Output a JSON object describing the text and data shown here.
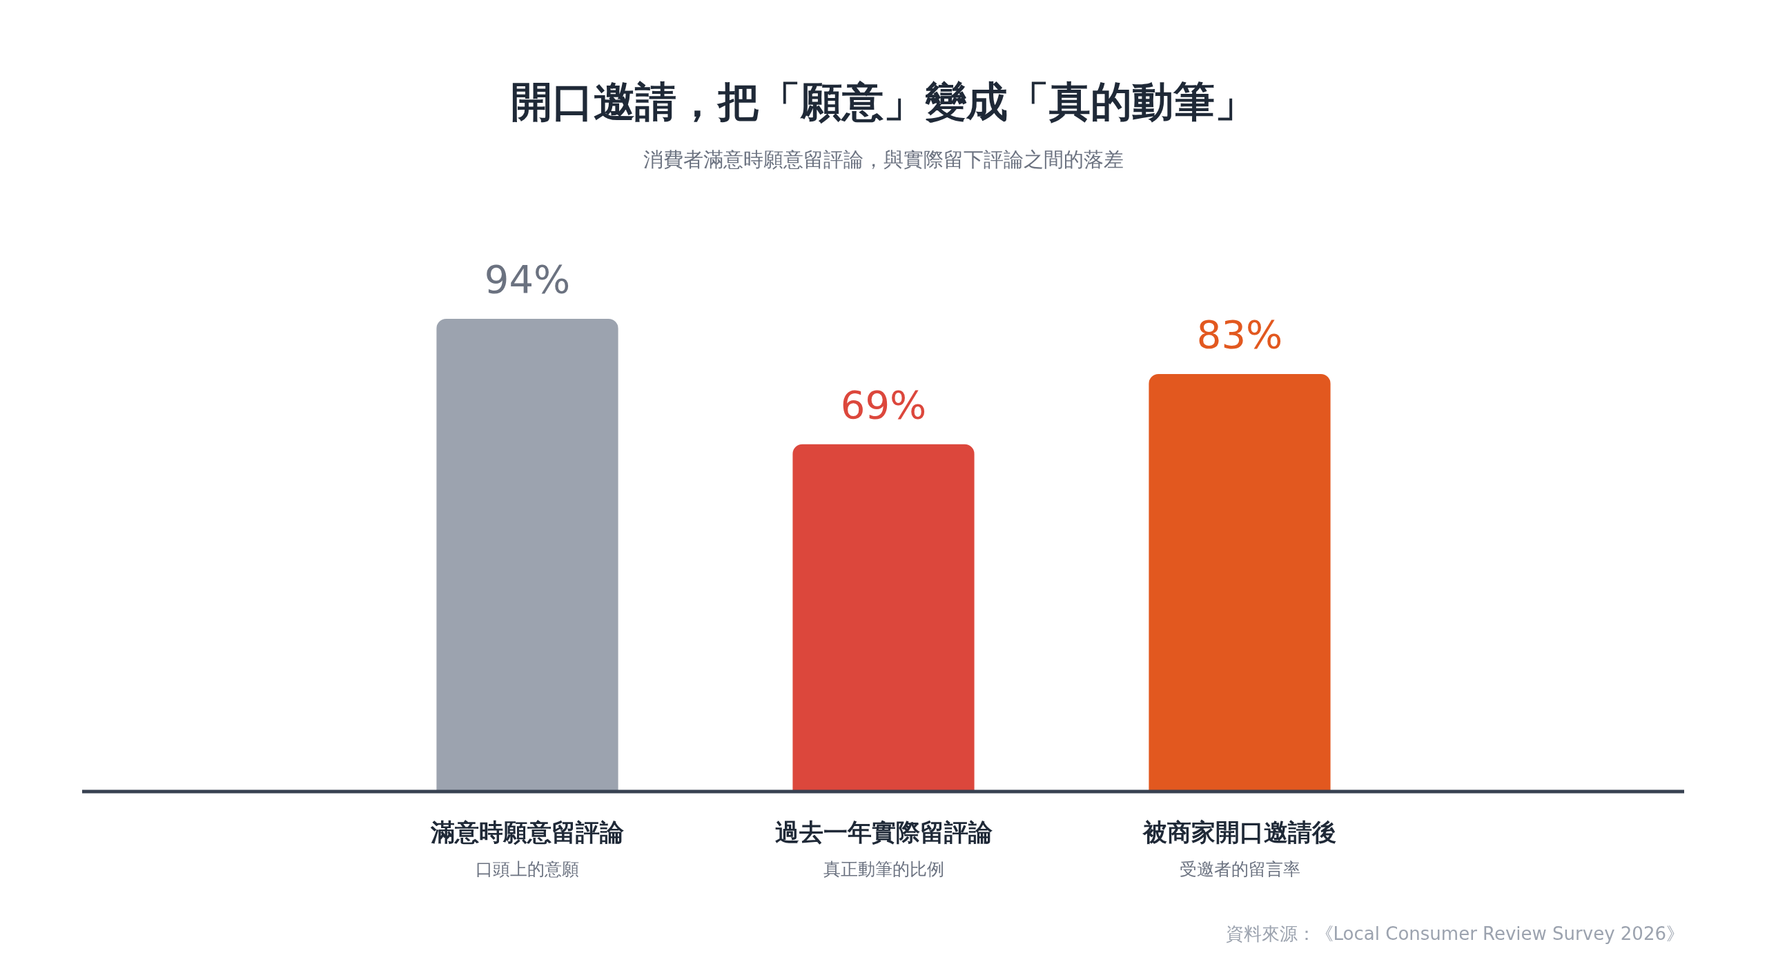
{
  "chart_data": {
    "type": "bar",
    "title": "開口邀請，把「願意」變成「真的動筆」",
    "subtitle": "消費者滿意時願意留評論，與實際留下評論之間的落差",
    "categories": [
      "滿意時願意留評論",
      "過去一年實際留評論",
      "被商家開口邀請後"
    ],
    "values": [
      94,
      69,
      83
    ],
    "colors": [
      "#9ca3af",
      "#dc473c",
      "#e2581f"
    ],
    "value_labels": [
      "94%",
      "69%",
      "83%"
    ],
    "annotations": [
      "口頭上的意願",
      "真正動筆的比例",
      "受邀者的留言率",
      "資料來源：《Local Consumer Review Survey 2026》"
    ],
    "legend": false
  }
}
